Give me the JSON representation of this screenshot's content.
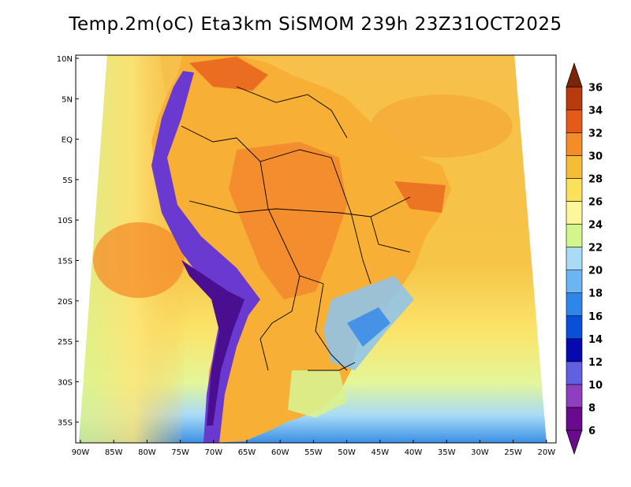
{
  "title": "Temp.2m(oC) Eta3km SiSMOM 239h 23Z31OCT2025",
  "lat_labels": [
    "10N",
    "5N",
    "EQ",
    "5S",
    "10S",
    "15S",
    "20S",
    "25S",
    "30S",
    "35S"
  ],
  "lon_labels": [
    "90W",
    "85W",
    "80W",
    "75W",
    "70W",
    "65W",
    "60W",
    "55W",
    "50W",
    "45W",
    "40W",
    "35W",
    "30W",
    "25W",
    "20W"
  ],
  "colorbar": {
    "ticks": [
      "6",
      "8",
      "10",
      "12",
      "14",
      "16",
      "18",
      "20",
      "22",
      "24",
      "26",
      "28",
      "30",
      "32",
      "34",
      "36"
    ],
    "colors": [
      "#6a0a8c",
      "#8d3fbf",
      "#6060e0",
      "#0808b0",
      "#0a4fd8",
      "#2f86ea",
      "#6cb4f2",
      "#a9dbf7",
      "#d2f58c",
      "#fff59a",
      "#fbe05a",
      "#f7bc36",
      "#f58c2a",
      "#e55a18",
      "#b83b10",
      "#7a2508"
    ]
  }
}
